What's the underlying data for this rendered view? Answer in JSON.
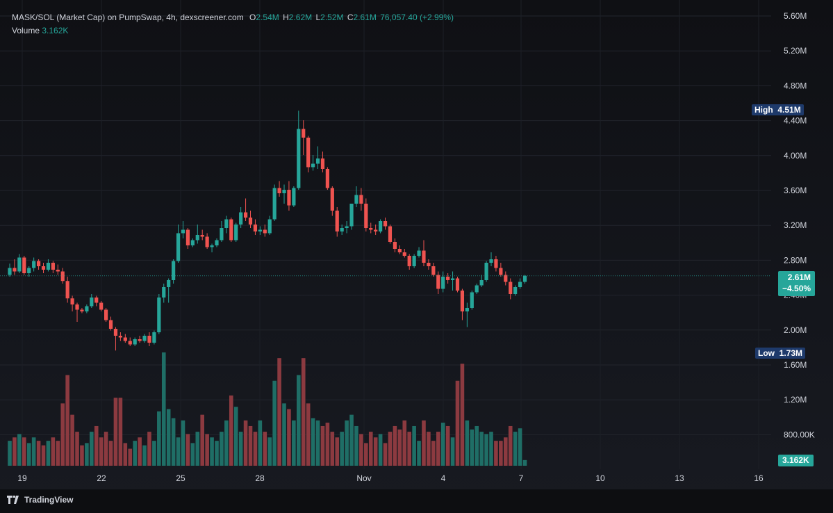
{
  "legend": {
    "title": "MASK/SOL (Market Cap) on PumpSwap, 4h, dexscreener.com",
    "o_label": "O",
    "o_value": "2.54M",
    "h_label": "H",
    "h_value": "2.62M",
    "l_label": "L",
    "l_value": "2.52M",
    "c_label": "C",
    "c_value": "2.61M",
    "change": "76,057.40 (+2.99%)",
    "volume_label": "Volume",
    "volume_value": "3.162K"
  },
  "tags": {
    "high_label": "High",
    "high_value": "4.51M",
    "low_label": "Low",
    "low_value": "1.73M",
    "price_value": "2.61M",
    "price_change": "−4.50%",
    "volume_value": "3.162K"
  },
  "brand": {
    "name": "TradingView",
    "icon": "tradingview-logo-icon"
  },
  "colors": {
    "up": "#26a69a",
    "down": "#ef5350",
    "up_volume": "#1f6e66",
    "down_volume": "#8c3a40",
    "tag_dark": "#1e3a6b",
    "grid": "#22252d"
  },
  "chart_data": {
    "type": "candlestick",
    "title": "MASK/SOL (Market Cap) on PumpSwap, 4h, dexscreener.com",
    "x_tick_labels": [
      "19",
      "22",
      "25",
      "28",
      "Nov",
      "4",
      "7",
      "10",
      "13",
      "16"
    ],
    "y_tick_labels": [
      "5.60M",
      "5.20M",
      "4.80M",
      "4.40M",
      "4.00M",
      "3.60M",
      "3.20M",
      "2.80M",
      "2.40M",
      "2.00M",
      "1.60M",
      "1.20M",
      "800.00K"
    ],
    "ylim": [
      1.6,
      5.6
    ],
    "grid": true,
    "candles_ohlc_millions": [
      [
        2.62,
        2.75,
        2.6,
        2.7
      ],
      [
        2.7,
        2.8,
        2.62,
        2.66
      ],
      [
        2.66,
        2.86,
        2.64,
        2.82
      ],
      [
        2.82,
        2.84,
        2.62,
        2.64
      ],
      [
        2.64,
        2.72,
        2.6,
        2.7
      ],
      [
        2.7,
        2.82,
        2.66,
        2.78
      ],
      [
        2.78,
        2.8,
        2.68,
        2.72
      ],
      [
        2.72,
        2.76,
        2.64,
        2.68
      ],
      [
        2.68,
        2.8,
        2.66,
        2.76
      ],
      [
        2.76,
        2.78,
        2.64,
        2.68
      ],
      [
        2.68,
        2.74,
        2.62,
        2.66
      ],
      [
        2.66,
        2.7,
        2.52,
        2.55
      ],
      [
        2.55,
        2.6,
        2.3,
        2.35
      ],
      [
        2.35,
        2.38,
        2.2,
        2.28
      ],
      [
        2.28,
        2.3,
        2.08,
        2.22
      ],
      [
        2.22,
        2.24,
        2.18,
        2.2
      ],
      [
        2.2,
        2.28,
        2.18,
        2.26
      ],
      [
        2.26,
        2.4,
        2.24,
        2.36
      ],
      [
        2.36,
        2.38,
        2.26,
        2.3
      ],
      [
        2.3,
        2.32,
        2.2,
        2.22
      ],
      [
        2.22,
        2.24,
        2.08,
        2.1
      ],
      [
        2.1,
        2.14,
        1.98,
        2.0
      ],
      [
        2.0,
        2.02,
        1.75,
        1.92
      ],
      [
        1.92,
        1.96,
        1.86,
        1.9
      ],
      [
        1.9,
        1.94,
        1.84,
        1.86
      ],
      [
        1.86,
        1.9,
        1.8,
        1.82
      ],
      [
        1.82,
        1.9,
        1.8,
        1.88
      ],
      [
        1.88,
        1.92,
        1.84,
        1.86
      ],
      [
        1.86,
        1.94,
        1.84,
        1.92
      ],
      [
        1.92,
        1.96,
        1.8,
        1.84
      ],
      [
        1.84,
        1.98,
        1.82,
        1.96
      ],
      [
        1.96,
        2.4,
        1.94,
        2.36
      ],
      [
        2.36,
        2.52,
        2.3,
        2.48
      ],
      [
        2.48,
        2.58,
        2.3,
        2.56
      ],
      [
        2.56,
        2.8,
        2.52,
        2.78
      ],
      [
        2.78,
        3.2,
        2.76,
        3.1
      ],
      [
        3.1,
        3.24,
        3.04,
        3.14
      ],
      [
        3.14,
        3.16,
        2.92,
        2.96
      ],
      [
        2.96,
        3.04,
        2.94,
        3.02
      ],
      [
        3.02,
        3.2,
        2.98,
        3.08
      ],
      [
        3.08,
        3.14,
        3.02,
        3.06
      ],
      [
        3.06,
        3.1,
        2.92,
        2.94
      ],
      [
        2.94,
        2.98,
        2.88,
        2.96
      ],
      [
        2.96,
        3.04,
        2.94,
        3.02
      ],
      [
        3.02,
        3.24,
        3.0,
        3.16
      ],
      [
        3.16,
        3.3,
        3.1,
        3.26
      ],
      [
        3.26,
        3.28,
        3.0,
        3.02
      ],
      [
        3.02,
        3.22,
        3.0,
        3.2
      ],
      [
        3.2,
        3.4,
        3.16,
        3.34
      ],
      [
        3.34,
        3.5,
        3.24,
        3.28
      ],
      [
        3.28,
        3.36,
        3.16,
        3.2
      ],
      [
        3.2,
        3.26,
        3.08,
        3.12
      ],
      [
        3.12,
        3.18,
        3.08,
        3.14
      ],
      [
        3.14,
        3.2,
        3.06,
        3.1
      ],
      [
        3.1,
        3.3,
        3.08,
        3.26
      ],
      [
        3.26,
        3.66,
        3.24,
        3.62
      ],
      [
        3.62,
        3.7,
        3.52,
        3.56
      ],
      [
        3.56,
        3.66,
        3.44,
        3.6
      ],
      [
        3.6,
        3.7,
        3.36,
        3.42
      ],
      [
        3.42,
        3.64,
        3.4,
        3.62
      ],
      [
        3.62,
        4.51,
        3.6,
        4.3
      ],
      [
        4.3,
        4.4,
        4.0,
        4.2
      ],
      [
        4.2,
        4.22,
        3.8,
        3.86
      ],
      [
        3.86,
        4.0,
        3.82,
        3.9
      ],
      [
        3.9,
        4.1,
        3.84,
        3.96
      ],
      [
        3.96,
        4.04,
        3.8,
        3.84
      ],
      [
        3.84,
        3.86,
        3.6,
        3.62
      ],
      [
        3.62,
        3.64,
        3.3,
        3.36
      ],
      [
        3.36,
        3.4,
        3.06,
        3.12
      ],
      [
        3.12,
        3.2,
        3.08,
        3.16
      ],
      [
        3.16,
        3.24,
        3.1,
        3.18
      ],
      [
        3.18,
        3.36,
        3.14,
        3.44
      ],
      [
        3.44,
        3.64,
        3.4,
        3.54
      ],
      [
        3.54,
        3.62,
        3.36,
        3.44
      ],
      [
        3.44,
        3.5,
        3.12,
        3.16
      ],
      [
        3.16,
        3.22,
        3.1,
        3.14
      ],
      [
        3.14,
        3.2,
        3.08,
        3.12
      ],
      [
        3.12,
        3.26,
        3.1,
        3.24
      ],
      [
        3.24,
        3.28,
        3.14,
        3.18
      ],
      [
        3.18,
        3.2,
        2.98,
        3.0
      ],
      [
        3.0,
        3.04,
        2.88,
        2.92
      ],
      [
        2.92,
        2.96,
        2.86,
        2.88
      ],
      [
        2.88,
        2.92,
        2.82,
        2.84
      ],
      [
        2.84,
        2.86,
        2.68,
        2.72
      ],
      [
        2.72,
        2.86,
        2.7,
        2.84
      ],
      [
        2.84,
        2.94,
        2.82,
        2.9
      ],
      [
        2.9,
        3.02,
        2.72,
        2.76
      ],
      [
        2.76,
        2.8,
        2.68,
        2.72
      ],
      [
        2.72,
        2.76,
        2.6,
        2.62
      ],
      [
        2.62,
        2.66,
        2.4,
        2.46
      ],
      [
        2.46,
        2.66,
        2.42,
        2.6
      ],
      [
        2.6,
        2.64,
        2.52,
        2.56
      ],
      [
        2.56,
        2.66,
        2.44,
        2.58
      ],
      [
        2.58,
        2.6,
        2.42,
        2.44
      ],
      [
        2.44,
        2.46,
        2.1,
        2.2
      ],
      [
        2.2,
        2.3,
        2.02,
        2.24
      ],
      [
        2.24,
        2.44,
        2.22,
        2.42
      ],
      [
        2.42,
        2.52,
        2.4,
        2.5
      ],
      [
        2.5,
        2.62,
        2.48,
        2.56
      ],
      [
        2.56,
        2.78,
        2.54,
        2.76
      ],
      [
        2.76,
        2.88,
        2.72,
        2.8
      ],
      [
        2.8,
        2.84,
        2.66,
        2.7
      ],
      [
        2.7,
        2.76,
        2.6,
        2.62
      ],
      [
        2.62,
        2.66,
        2.5,
        2.54
      ],
      [
        2.54,
        2.58,
        2.34,
        2.4
      ],
      [
        2.4,
        2.5,
        2.38,
        2.48
      ],
      [
        2.48,
        2.58,
        2.46,
        2.54
      ],
      [
        2.54,
        2.62,
        2.52,
        2.61
      ]
    ],
    "volume_relative": [
      0.22,
      0.25,
      0.28,
      0.25,
      0.2,
      0.25,
      0.22,
      0.18,
      0.22,
      0.25,
      0.22,
      0.55,
      0.8,
      0.45,
      0.3,
      0.18,
      0.2,
      0.3,
      0.35,
      0.25,
      0.3,
      0.22,
      0.6,
      0.6,
      0.2,
      0.15,
      0.22,
      0.25,
      0.18,
      0.3,
      0.22,
      0.48,
      1.0,
      0.5,
      0.42,
      0.25,
      0.4,
      0.28,
      0.2,
      0.3,
      0.45,
      0.28,
      0.25,
      0.22,
      0.3,
      0.4,
      0.62,
      0.52,
      0.3,
      0.4,
      0.35,
      0.3,
      0.4,
      0.3,
      0.25,
      0.75,
      0.95,
      0.55,
      0.5,
      0.4,
      0.8,
      0.95,
      0.55,
      0.42,
      0.4,
      0.35,
      0.38,
      0.3,
      0.25,
      0.3,
      0.4,
      0.45,
      0.35,
      0.28,
      0.2,
      0.3,
      0.25,
      0.28,
      0.2,
      0.3,
      0.35,
      0.32,
      0.4,
      0.3,
      0.35,
      0.22,
      0.4,
      0.3,
      0.22,
      0.3,
      0.38,
      0.35,
      0.25,
      0.75,
      0.9,
      0.4,
      0.32,
      0.35,
      0.3,
      0.28,
      0.3,
      0.22,
      0.22,
      0.25,
      0.35,
      0.3,
      0.33,
      0.05
    ]
  }
}
